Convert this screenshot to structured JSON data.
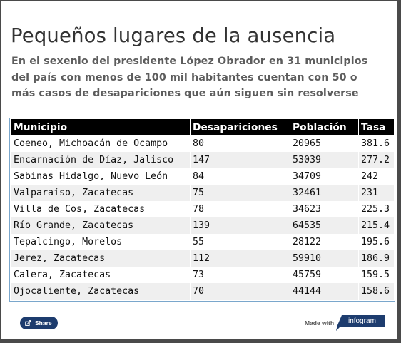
{
  "title": "Pequeños lugares de la ausencia",
  "subtitle": "En el sexenio del presidente López Obrador en 31 municipios del país con menos de 100 mil habitantes cuentan con 50 o más casos de desapariciones que aún siguen sin resolverse",
  "table": {
    "headers": [
      "Municipio",
      "Desapariciones",
      "Población",
      "Tasa"
    ],
    "rows": [
      [
        "Coeneo, Michoacán de Ocampo",
        "80",
        "20965",
        "381.6"
      ],
      [
        "Encarnación de Díaz, Jalisco",
        "147",
        "53039",
        "277.2"
      ],
      [
        "Sabinas Hidalgo, Nuevo León",
        "84",
        "34709",
        "242"
      ],
      [
        "Valparaíso, Zacatecas",
        "75",
        "32461",
        "231"
      ],
      [
        "Villa de Cos, Zacatecas",
        "78",
        "34623",
        "225.3"
      ],
      [
        "Río Grande, Zacatecas",
        "139",
        "64535",
        "215.4"
      ],
      [
        "Tepalcingo, Morelos",
        "55",
        "28122",
        "195.6"
      ],
      [
        "Jerez, Zacatecas",
        "112",
        "59910",
        "186.9"
      ],
      [
        "Calera, Zacatecas",
        "73",
        "45759",
        "159.5"
      ],
      [
        "Ojocaliente, Zacatecas",
        "70",
        "44144",
        "158.6"
      ]
    ]
  },
  "footer": {
    "share_label": "Share",
    "made_with": "Made with",
    "brand": "infogram",
    "brand_color": "#1d3c6e"
  }
}
